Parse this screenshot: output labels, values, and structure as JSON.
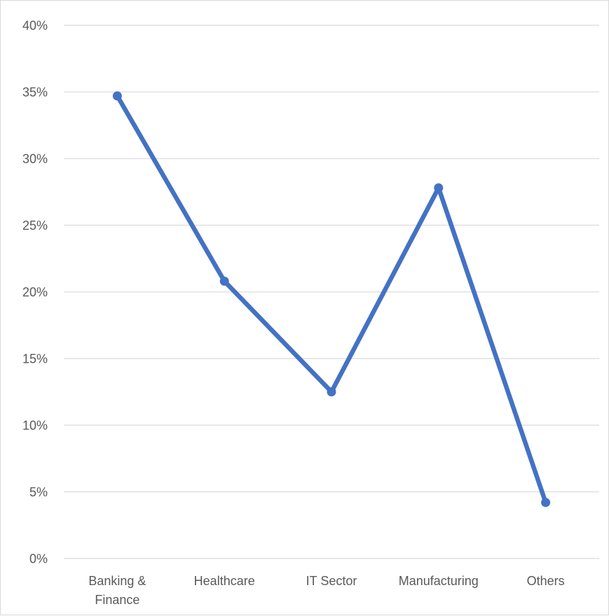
{
  "chart_data": {
    "type": "line",
    "title": "",
    "xlabel": "",
    "ylabel": "",
    "categories": [
      "Banking & Finance",
      "Healthcare",
      "IT Sector",
      "Manufacturing",
      "Others"
    ],
    "category_label_lines": [
      [
        "Banking &",
        "Finance"
      ],
      [
        "Healthcare"
      ],
      [
        "IT Sector"
      ],
      [
        "Manufacturing"
      ],
      [
        "Others"
      ]
    ],
    "series": [
      {
        "values": [
          0.347,
          0.208,
          0.125,
          0.278,
          0.042
        ]
      }
    ],
    "ylim": [
      0,
      0.4
    ],
    "yticks": [
      0,
      0.05,
      0.1,
      0.15,
      0.2,
      0.25,
      0.3,
      0.35,
      0.4
    ],
    "ytick_labels": [
      "0%",
      "5%",
      "10%",
      "15%",
      "20%",
      "25%",
      "30%",
      "35%",
      "40%"
    ],
    "y_format": "percent",
    "grid": true,
    "legend": "none",
    "colors": {
      "series": "#4472C4",
      "grid": "#d9d9d9",
      "text": "#595959",
      "border": "#d9d9d9"
    }
  }
}
